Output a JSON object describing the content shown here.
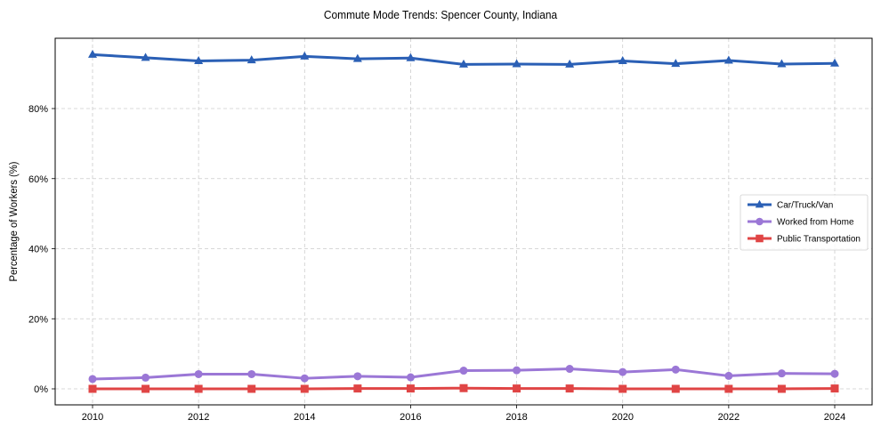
{
  "chart_data": {
    "type": "line",
    "title": "Commute Mode Trends: Spencer County, Indiana",
    "xlabel": "",
    "ylabel": "Percentage of Workers (%)",
    "x": [
      2010,
      2011,
      2012,
      2013,
      2014,
      2015,
      2016,
      2017,
      2018,
      2019,
      2020,
      2021,
      2022,
      2023,
      2024
    ],
    "x_ticks": [
      "2010",
      "2012",
      "2014",
      "2016",
      "2018",
      "2020",
      "2022",
      "2024"
    ],
    "y_ticks": [
      "0%",
      "20%",
      "40%",
      "60%",
      "80%"
    ],
    "ylim": [
      -4.8,
      99.8
    ],
    "xlim": [
      2009.3,
      2024.7
    ],
    "grid": true,
    "legend_position": "center right",
    "series": [
      {
        "name": "Car/Truck/Van",
        "color": "#2a5fb5",
        "marker": "triangle",
        "values": [
          95.4,
          94.5,
          93.6,
          93.8,
          94.9,
          94.2,
          94.4,
          92.6,
          92.7,
          92.6,
          93.6,
          92.8,
          93.7,
          92.7,
          92.9
        ]
      },
      {
        "name": "Worked from Home",
        "color": "#9b77d6",
        "marker": "circle",
        "values": [
          2.8,
          3.2,
          4.2,
          4.2,
          3.0,
          3.6,
          3.3,
          5.2,
          5.3,
          5.7,
          4.8,
          5.5,
          3.7,
          4.4,
          4.3
        ]
      },
      {
        "name": "Public Transportation",
        "color": "#e04545",
        "marker": "square",
        "values": [
          0.0,
          0.0,
          0.0,
          0.0,
          0.0,
          0.1,
          0.1,
          0.2,
          0.1,
          0.1,
          0.0,
          0.0,
          0.0,
          0.0,
          0.1
        ]
      }
    ]
  }
}
